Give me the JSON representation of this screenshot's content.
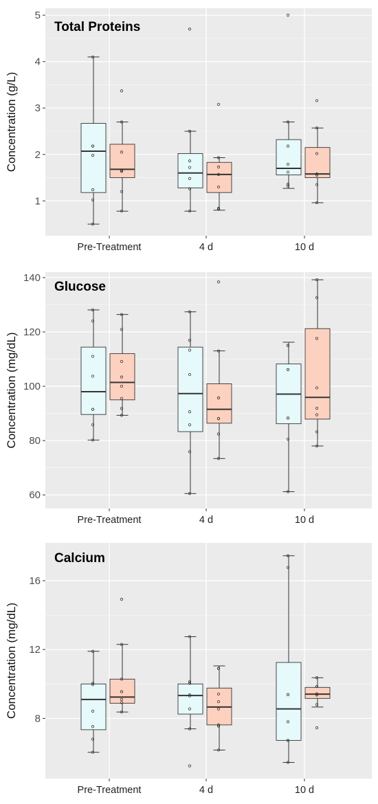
{
  "colors": {
    "group_a": "#e6fafc",
    "group_b": "#fdd1bf",
    "panel_bg": "#ebebeb",
    "grid": "#ffffff"
  },
  "chart_data": [
    {
      "type": "box",
      "title": "Total Proteins",
      "ylabel": "Concentration (g/L)",
      "categories": [
        "Pre-Treatment",
        "4 d",
        "10 d"
      ],
      "ylim": [
        0.25,
        5.15
      ],
      "yticks": [
        1,
        2,
        3,
        4,
        5
      ],
      "series": [
        {
          "color": "#e6fafc",
          "boxes": [
            {
              "whislo": 0.5,
              "q1": 1.18,
              "med": 2.07,
              "q3": 2.67,
              "whishi": 4.1,
              "points": [
                0.5,
                1.02,
                1.24,
                1.98,
                2.18,
                2.18,
                4.1
              ],
              "outliers": []
            },
            {
              "whislo": 0.78,
              "q1": 1.28,
              "med": 1.6,
              "q3": 2.02,
              "whishi": 2.5,
              "points": [
                0.78,
                1.26,
                1.48,
                1.72,
                1.86,
                2.5
              ],
              "outliers": [
                4.7
              ]
            },
            {
              "whislo": 1.27,
              "q1": 1.56,
              "med": 1.7,
              "q3": 2.32,
              "whishi": 2.7,
              "points": [
                1.32,
                1.36,
                1.62,
                1.79,
                2.18,
                2.7
              ],
              "outliers": [
                5.0
              ]
            }
          ]
        },
        {
          "color": "#fdd1bf",
          "boxes": [
            {
              "whislo": 0.78,
              "q1": 1.5,
              "med": 1.68,
              "q3": 2.22,
              "whishi": 2.7,
              "points": [
                0.78,
                1.2,
                1.64,
                1.64,
                1.66,
                2.05,
                2.7
              ],
              "outliers": [
                3.37
              ]
            },
            {
              "whislo": 0.8,
              "q1": 1.18,
              "med": 1.57,
              "q3": 1.83,
              "whishi": 1.93,
              "points": [
                0.82,
                0.84,
                1.3,
                1.57,
                1.73,
                1.93
              ],
              "outliers": [
                3.08
              ]
            },
            {
              "whislo": 0.96,
              "q1": 1.5,
              "med": 1.58,
              "q3": 2.15,
              "whishi": 2.57,
              "points": [
                0.96,
                1.35,
                1.55,
                1.58,
                2.02,
                2.57
              ],
              "outliers": [
                3.16
              ]
            }
          ]
        }
      ]
    },
    {
      "type": "box",
      "title": "Glucose",
      "ylabel": "Concentration (mg/dL)",
      "categories": [
        "Pre-Treatment",
        "4 d",
        "10 d"
      ],
      "ylim": [
        55,
        142
      ],
      "yticks": [
        60,
        80,
        100,
        120,
        140
      ],
      "series": [
        {
          "color": "#e6fafc",
          "boxes": [
            {
              "whislo": 80.2,
              "q1": 89.6,
              "med": 98.0,
              "q3": 114.4,
              "whishi": 128.1,
              "points": [
                80.2,
                85.8,
                91.5,
                91.5,
                103.7,
                111.0,
                124.0,
                128.1
              ],
              "outliers": []
            },
            {
              "whislo": 60.5,
              "q1": 83.3,
              "med": 97.3,
              "q3": 114.4,
              "whishi": 127.4,
              "points": [
                60.5,
                75.9,
                85.8,
                90.6,
                104.3,
                113.3,
                116.9,
                127.4
              ],
              "outliers": []
            },
            {
              "whislo": 61.2,
              "q1": 86.2,
              "med": 97.1,
              "q3": 108.2,
              "whishi": 116.2,
              "points": [
                61.2,
                80.5,
                88.3,
                88.3,
                106.1,
                106.1,
                115.0,
                115.0
              ],
              "outliers": []
            }
          ]
        },
        {
          "color": "#fdd1bf",
          "boxes": [
            {
              "whislo": 89.3,
              "q1": 95.0,
              "med": 101.4,
              "q3": 112.0,
              "whishi": 126.4,
              "points": [
                89.3,
                91.8,
                95.5,
                100.0,
                103.4,
                109.1,
                120.9,
                126.4
              ],
              "outliers": []
            },
            {
              "whislo": 73.4,
              "q1": 86.4,
              "med": 91.5,
              "q3": 100.9,
              "whishi": 113.0,
              "points": [
                73.4,
                82.4,
                88.1,
                88.1,
                95.7,
                95.7,
                113.0
              ],
              "outliers": [
                138.4
              ]
            },
            {
              "whislo": 78.0,
              "q1": 87.9,
              "med": 95.9,
              "q3": 121.2,
              "whishi": 139.2,
              "points": [
                78.0,
                83.2,
                89.5,
                91.9,
                99.4,
                117.6,
                132.6,
                139.2
              ],
              "outliers": []
            }
          ]
        }
      ]
    },
    {
      "type": "box",
      "title": "Calcium",
      "ylabel": "Concentration (mg/dL)",
      "categories": [
        "Pre-Treatment",
        "4 d",
        "10 d"
      ],
      "ylim": [
        4.5,
        18.2
      ],
      "yticks": [
        8,
        12,
        16
      ],
      "series": [
        {
          "color": "#e6fafc",
          "boxes": [
            {
              "whislo": 6.03,
              "q1": 7.34,
              "med": 9.1,
              "q3": 10.0,
              "whishi": 11.9,
              "points": [
                6.03,
                6.79,
                7.52,
                8.42,
                9.96,
                10.04,
                11.9
              ],
              "outliers": []
            },
            {
              "whislo": 7.39,
              "q1": 8.25,
              "med": 9.33,
              "q3": 10.0,
              "whishi": 12.75,
              "points": [
                7.39,
                8.55,
                9.3,
                9.37,
                10.04,
                10.13,
                12.75
              ],
              "outliers": [
                5.24
              ]
            },
            {
              "whislo": 5.44,
              "q1": 6.72,
              "med": 8.55,
              "q3": 11.25,
              "whishi": 17.45,
              "points": [
                5.44,
                6.72,
                6.72,
                7.8,
                9.38,
                9.38,
                16.77,
                17.45
              ],
              "outliers": []
            }
          ]
        },
        {
          "color": "#fdd1bf",
          "boxes": [
            {
              "whislo": 8.37,
              "q1": 8.88,
              "med": 9.24,
              "q3": 10.28,
              "whishi": 12.3,
              "points": [
                8.37,
                8.92,
                9.1,
                9.55,
                9.55,
                10.28,
                12.3
              ],
              "outliers": [
                14.92
              ]
            },
            {
              "whislo": 6.16,
              "q1": 7.62,
              "med": 8.66,
              "q3": 9.76,
              "whishi": 11.05,
              "points": [
                6.16,
                7.55,
                7.62,
                8.55,
                8.97,
                9.41,
                10.9,
                10.9
              ],
              "outliers": []
            },
            {
              "whislo": 8.66,
              "q1": 9.16,
              "med": 9.41,
              "q3": 9.8,
              "whishi": 10.36,
              "points": [
                8.8,
                9.35,
                9.42,
                9.42,
                9.85,
                9.85,
                10.36
              ],
              "outliers": [
                7.45
              ]
            }
          ]
        }
      ]
    }
  ]
}
